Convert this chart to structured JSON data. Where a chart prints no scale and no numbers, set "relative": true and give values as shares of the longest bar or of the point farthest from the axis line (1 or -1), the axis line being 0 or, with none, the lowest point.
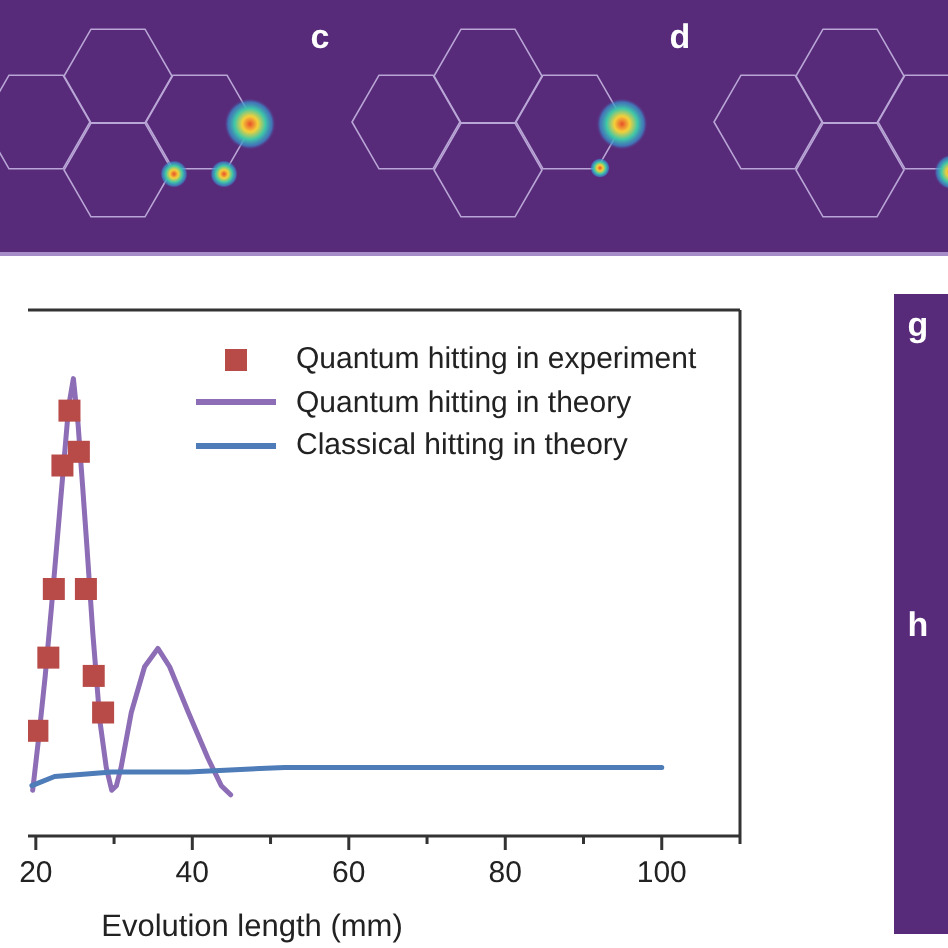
{
  "chart_data": {
    "type": "line",
    "xlabel": "Evolution length (mm)",
    "relative": true,
    "xlim": [
      19,
      110
    ],
    "xticks": [
      20,
      {
        "value": 30,
        "label": null
      },
      40,
      {
        "value": 50,
        "label": null
      },
      60,
      {
        "value": 70,
        "label": null
      },
      80,
      {
        "value": 90,
        "label": null
      },
      100,
      {
        "value": 110,
        "label": null
      }
    ],
    "legend": "top right",
    "annotations": [
      "c",
      "d",
      "g",
      "h"
    ],
    "series": [
      {
        "name": "Quantum hitting in experiment",
        "type": "scatter",
        "marker": "square",
        "color": "#b84a47",
        "x": [
          20.2,
          21.6,
          22.3,
          23.4,
          24.3,
          25.5,
          26.4,
          27.4,
          28.6
        ],
        "values": [
          0.23,
          0.39,
          0.54,
          0.81,
          0.93,
          0.84,
          0.54,
          0.35,
          0.27
        ]
      },
      {
        "name": "Quantum hitting in theory",
        "color": "#8d6db5",
        "x": [
          19.6,
          20.4,
          21.2,
          22.0,
          22.8,
          23.6,
          24.2,
          24.8,
          25.4,
          26.0,
          26.5,
          27.3,
          28.2,
          29.0,
          29.7,
          30.3,
          30.9,
          32.2,
          33.9,
          35.6,
          37.1,
          39.5,
          42.0,
          43.7,
          44.9
        ],
        "values": [
          0.1,
          0.22,
          0.35,
          0.5,
          0.66,
          0.82,
          0.94,
          1.0,
          0.9,
          0.76,
          0.64,
          0.44,
          0.25,
          0.15,
          0.1,
          0.11,
          0.15,
          0.27,
          0.37,
          0.41,
          0.37,
          0.27,
          0.17,
          0.11,
          0.09
        ]
      },
      {
        "name": "Classical hitting in theory",
        "color": "#4d7cb8",
        "x": [
          19.5,
          22.4,
          29.7,
          39.5,
          51.8,
          68.2,
          88.5,
          100
        ],
        "values": [
          0.11,
          0.13,
          0.14,
          0.14,
          0.15,
          0.15,
          0.15,
          0.15
        ]
      }
    ]
  }
}
